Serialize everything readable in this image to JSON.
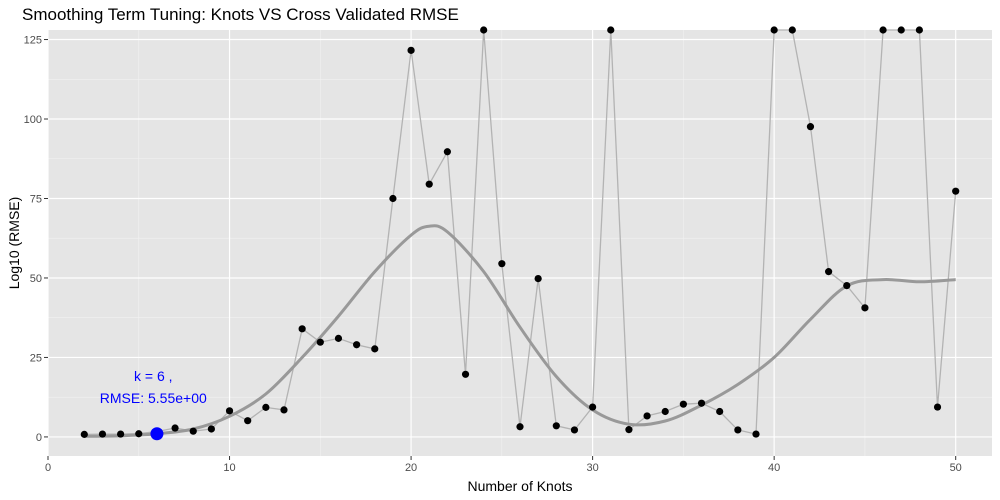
{
  "chart_data": {
    "type": "line",
    "title": "Smoothing Term Tuning: Knots VS Cross Validated RMSE",
    "xlabel": "Number of Knots",
    "ylabel": "Log10 (RMSE)",
    "xlim": [
      0,
      52
    ],
    "ylim": [
      -6,
      128
    ],
    "x_ticks": [
      0,
      10,
      20,
      30,
      40,
      50
    ],
    "y_ticks": [
      0,
      25,
      50,
      75,
      100,
      125
    ],
    "grid": true,
    "x": [
      2,
      3,
      4,
      5,
      6,
      7,
      8,
      9,
      10,
      11,
      12,
      13,
      14,
      15,
      16,
      17,
      18,
      19,
      20,
      21,
      22,
      23,
      24,
      25,
      26,
      27,
      28,
      29,
      30,
      31,
      32,
      33,
      34,
      35,
      36,
      37,
      38,
      39,
      40,
      41,
      42,
      43,
      44,
      45,
      46,
      47,
      48,
      49,
      50
    ],
    "series": [
      {
        "values": [
          0.8,
          0.9,
          0.9,
          1.0,
          1.7,
          2.8,
          1.8,
          2.5,
          8.2,
          5.1,
          9.3,
          8.5,
          34.0,
          29.8,
          31.0,
          29.0,
          27.7,
          75.0,
          121.6,
          79.5,
          89.7,
          19.7,
          128,
          54.5,
          3.2,
          49.8,
          3.5,
          2.2,
          9.4,
          128,
          2.3,
          6.6,
          8.0,
          10.3,
          10.6,
          8.0,
          2.2,
          0.9,
          128,
          128,
          97.6,
          52.0,
          47.6,
          40.6,
          128,
          128,
          128,
          9.4,
          77.3
        ],
        "color": "#b3b3b3"
      },
      {
        "x": [
          2,
          4,
          6,
          8,
          10,
          12,
          14,
          16,
          18,
          20,
          21,
          22,
          24,
          26,
          28,
          30,
          32,
          34,
          36,
          38,
          40,
          42,
          44,
          46,
          48,
          50
        ],
        "values": [
          0.2,
          0.4,
          1.0,
          2.5,
          6.5,
          13.5,
          25.0,
          38.0,
          52.0,
          63.5,
          66.3,
          64.5,
          52.0,
          34.5,
          19.0,
          8.5,
          4.0,
          5.0,
          10.0,
          16.5,
          25.0,
          37.0,
          47.5,
          49.5,
          48.8,
          49.5
        ],
        "color": "#999999"
      }
    ],
    "highlight": {
      "x": 6,
      "y": 1.0,
      "color": "#0000ff"
    },
    "annotation": {
      "x": 5.8,
      "lines": [
        "k = 6 ,",
        "RMSE:  5.55e+00"
      ],
      "color": "#0000ff"
    },
    "colors": {
      "panel": "#e5e5e5",
      "grid_major": "#ffffff",
      "points": "#000000"
    }
  }
}
